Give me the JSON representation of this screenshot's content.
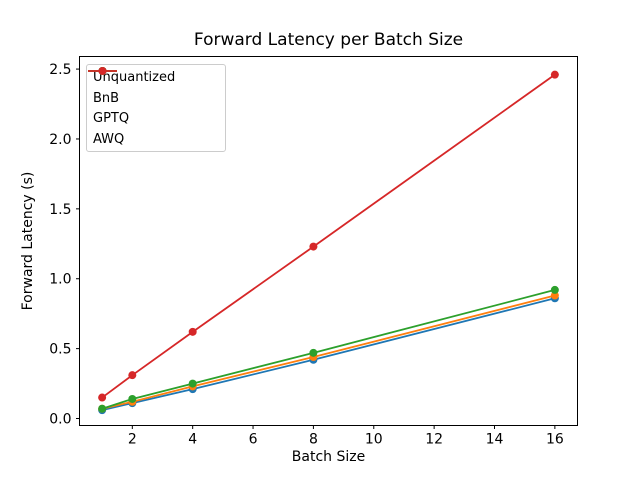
{
  "chart_data": {
    "type": "line",
    "title": "Forward Latency per Batch Size",
    "xlabel": "Batch Size",
    "ylabel": "Forward Latency (s)",
    "x": [
      1,
      2,
      4,
      8,
      16
    ],
    "series": [
      {
        "name": "Unquantized",
        "color": "#1f77b4",
        "values": [
          0.06,
          0.11,
          0.21,
          0.42,
          0.86
        ]
      },
      {
        "name": "BnB",
        "color": "#ff7f0e",
        "values": [
          0.07,
          0.12,
          0.23,
          0.44,
          0.88
        ]
      },
      {
        "name": "GPTQ",
        "color": "#2ca02c",
        "values": [
          0.07,
          0.14,
          0.25,
          0.47,
          0.92
        ]
      },
      {
        "name": "AWQ",
        "color": "#d62728",
        "values": [
          0.15,
          0.31,
          0.62,
          1.23,
          2.46
        ]
      }
    ],
    "xlim": [
      0.25,
      16.75
    ],
    "ylim": [
      -0.05,
      2.59
    ],
    "x_ticks": {
      "values": [
        2,
        4,
        6,
        8,
        10,
        12,
        14,
        16
      ],
      "labels": [
        "2",
        "4",
        "6",
        "8",
        "10",
        "12",
        "14",
        "16"
      ]
    },
    "y_ticks": {
      "values": [
        0.0,
        0.5,
        1.0,
        1.5,
        2.0,
        2.5
      ],
      "labels": [
        "0.0",
        "0.5",
        "1.0",
        "1.5",
        "2.0",
        "2.5"
      ]
    },
    "legend": {
      "position": "upper left",
      "entries": [
        "Unquantized",
        "BnB",
        "GPTQ",
        "AWQ"
      ]
    },
    "grid": false,
    "marker": "o",
    "axis_color": "#000000",
    "background": "#ffffff"
  }
}
